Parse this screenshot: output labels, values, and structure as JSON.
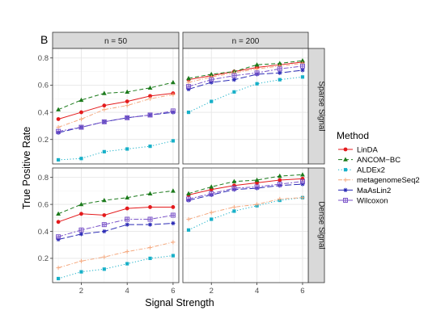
{
  "chart_data": {
    "type": "line",
    "panel_tag": "B",
    "xlabel": "Signal Strength",
    "ylabel": "True Positive Rate",
    "x": [
      1,
      2,
      3,
      4,
      5,
      6
    ],
    "xlim": [
      0.75,
      6.25
    ],
    "xticks": [
      2,
      4,
      6
    ],
    "ylim": [
      0.02,
      0.87
    ],
    "yticks": [
      0.2,
      0.4,
      0.6,
      0.8
    ],
    "columns": [
      "n = 50",
      "n = 200"
    ],
    "rows": [
      "Sparse Signal",
      "Dense Signal"
    ],
    "grid": true,
    "legend": {
      "title": "Method",
      "position": "right",
      "entries": [
        {
          "name": "LinDA",
          "color": "#e41a1c",
          "marker": "circle",
          "dash": "solid"
        },
        {
          "name": "ANCOM−BC",
          "color": "#1b7a1b",
          "marker": "triangle",
          "dash": "dashed"
        },
        {
          "name": "ALDEx2",
          "color": "#17b0c8",
          "marker": "square",
          "dash": "dotted"
        },
        {
          "name": "metagenomeSeq2",
          "color": "#f5a97f",
          "marker": "plus",
          "dash": "dashdot"
        },
        {
          "name": "MaAsLin2",
          "color": "#2a2ab5",
          "marker": "asterisk",
          "dash": "longdash"
        },
        {
          "name": "Wilcoxon",
          "color": "#7b54c9",
          "marker": "boxplus",
          "dash": "twodash"
        }
      ]
    },
    "panels": [
      {
        "column": "n = 50",
        "row": "Sparse Signal",
        "series": [
          {
            "name": "LinDA",
            "values": [
              0.35,
              0.4,
              0.45,
              0.48,
              0.52,
              0.54
            ]
          },
          {
            "name": "ANCOM−BC",
            "values": [
              0.42,
              0.49,
              0.54,
              0.55,
              0.58,
              0.62
            ]
          },
          {
            "name": "ALDEx2",
            "values": [
              0.05,
              0.06,
              0.11,
              0.13,
              0.15,
              0.19
            ]
          },
          {
            "name": "metagenomeSeq2",
            "values": [
              0.29,
              0.35,
              0.42,
              0.45,
              0.5,
              0.53
            ]
          },
          {
            "name": "MaAsLin2",
            "values": [
              0.25,
              0.29,
              0.33,
              0.36,
              0.38,
              0.4
            ]
          },
          {
            "name": "Wilcoxon",
            "values": [
              0.26,
              0.29,
              0.33,
              0.36,
              0.38,
              0.41
            ]
          }
        ]
      },
      {
        "column": "n = 200",
        "row": "Sparse Signal",
        "series": [
          {
            "name": "LinDA",
            "values": [
              0.64,
              0.67,
              0.7,
              0.73,
              0.75,
              0.77
            ]
          },
          {
            "name": "ANCOM−BC",
            "values": [
              0.65,
              0.68,
              0.7,
              0.75,
              0.76,
              0.78
            ]
          },
          {
            "name": "ALDEx2",
            "values": [
              0.4,
              0.48,
              0.55,
              0.61,
              0.64,
              0.66
            ]
          },
          {
            "name": "metagenomeSeq2",
            "values": [
              0.62,
              0.66,
              0.69,
              0.72,
              0.74,
              0.76
            ]
          },
          {
            "name": "MaAsLin2",
            "values": [
              0.57,
              0.62,
              0.64,
              0.68,
              0.69,
              0.71
            ]
          },
          {
            "name": "Wilcoxon",
            "values": [
              0.59,
              0.64,
              0.67,
              0.69,
              0.72,
              0.74
            ]
          }
        ]
      },
      {
        "column": "n = 50",
        "row": "Dense Signal",
        "series": [
          {
            "name": "LinDA",
            "values": [
              0.47,
              0.53,
              0.52,
              0.57,
              0.58,
              0.58
            ]
          },
          {
            "name": "ANCOM−BC",
            "values": [
              0.53,
              0.6,
              0.63,
              0.65,
              0.68,
              0.7
            ]
          },
          {
            "name": "ALDEx2",
            "values": [
              0.05,
              0.1,
              0.12,
              0.16,
              0.2,
              0.22
            ]
          },
          {
            "name": "metagenomeSeq2",
            "values": [
              0.13,
              0.18,
              0.21,
              0.25,
              0.28,
              0.32
            ]
          },
          {
            "name": "MaAsLin2",
            "values": [
              0.34,
              0.38,
              0.4,
              0.45,
              0.45,
              0.46
            ]
          },
          {
            "name": "Wilcoxon",
            "values": [
              0.36,
              0.41,
              0.45,
              0.49,
              0.49,
              0.52
            ]
          }
        ]
      },
      {
        "column": "n = 200",
        "row": "Dense Signal",
        "series": [
          {
            "name": "LinDA",
            "values": [
              0.67,
              0.71,
              0.74,
              0.76,
              0.78,
              0.79
            ]
          },
          {
            "name": "ANCOM−BC",
            "values": [
              0.68,
              0.73,
              0.77,
              0.78,
              0.81,
              0.82
            ]
          },
          {
            "name": "ALDEx2",
            "values": [
              0.41,
              0.49,
              0.55,
              0.59,
              0.63,
              0.65
            ]
          },
          {
            "name": "metagenomeSeq2",
            "values": [
              0.49,
              0.54,
              0.58,
              0.6,
              0.64,
              0.65
            ]
          },
          {
            "name": "MaAsLin2",
            "values": [
              0.63,
              0.67,
              0.71,
              0.72,
              0.74,
              0.75
            ]
          },
          {
            "name": "Wilcoxon",
            "values": [
              0.64,
              0.68,
              0.72,
              0.73,
              0.75,
              0.77
            ]
          }
        ]
      }
    ]
  }
}
